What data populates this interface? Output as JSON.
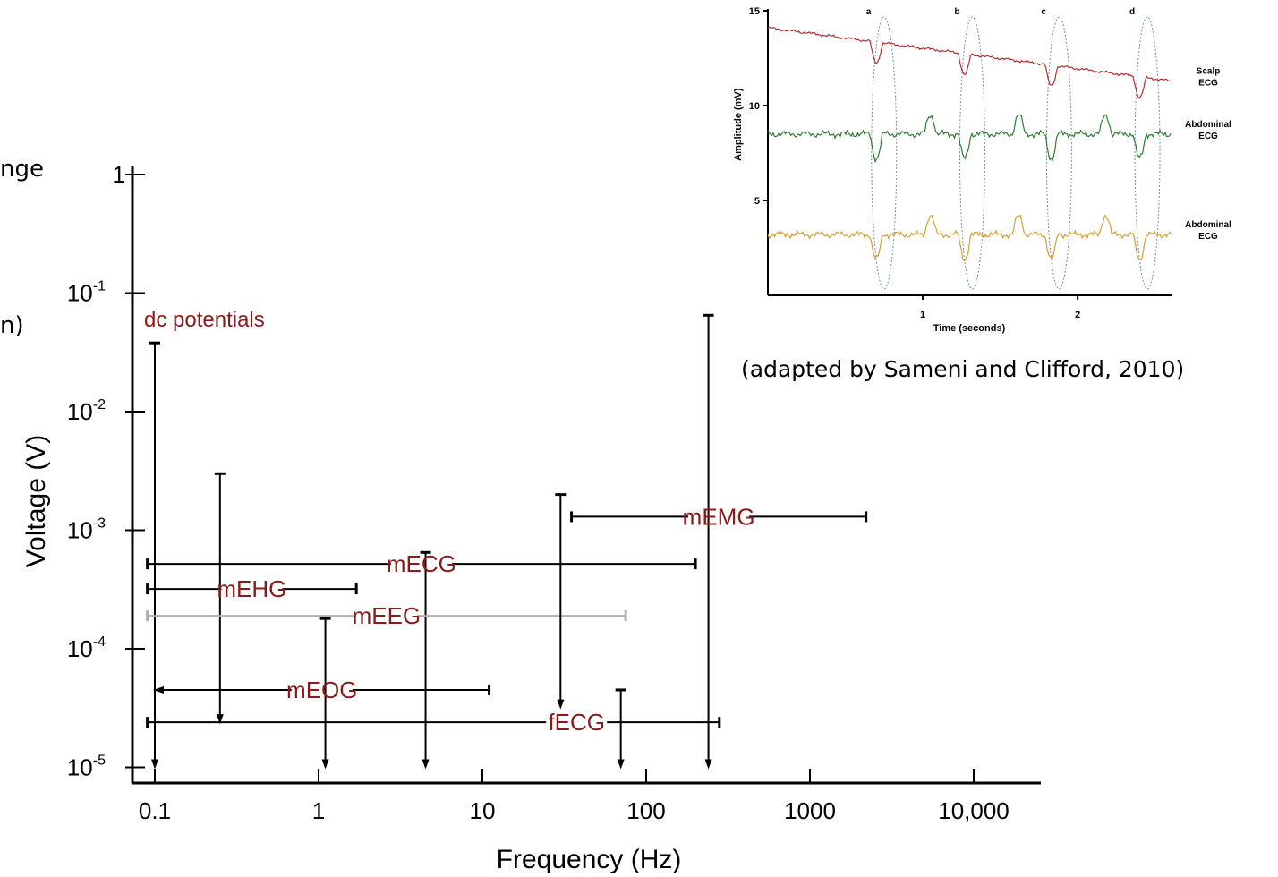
{
  "slide": {
    "text_fragment_1": "nge",
    "text_fragment_2": "n)",
    "caption": "(adapted by Sameni and Clifford, 2010)"
  },
  "colors": {
    "label": "#8b1a1a",
    "axis": "#000000",
    "scalp": "#b03030",
    "abdominal_1": "#2e7d32",
    "abdominal_2": "#d4a030",
    "ellipse": "#6a8fb8"
  },
  "chart_data": [
    {
      "type": "range-plot",
      "title": "",
      "xlabel": "Frequency (Hz)",
      "ylabel": "Voltage (V)",
      "x_scale": "log",
      "y_scale": "log",
      "xlim": [
        0.08,
        30000
      ],
      "ylim": [
        1e-05,
        1
      ],
      "x_ticks": [
        {
          "value": 0.1,
          "label": "0.1"
        },
        {
          "value": 1,
          "label": "1"
        },
        {
          "value": 10,
          "label": "10"
        },
        {
          "value": 100,
          "label": "100"
        },
        {
          "value": 1000,
          "label": "1000"
        },
        {
          "value": 10000,
          "label": "10,000"
        }
      ],
      "y_ticks": [
        {
          "value": 1,
          "base": "1",
          "exp": ""
        },
        {
          "value": 0.1,
          "base": "10",
          "exp": "-1"
        },
        {
          "value": 0.01,
          "base": "10",
          "exp": "-2"
        },
        {
          "value": 0.001,
          "base": "10",
          "exp": "-3"
        },
        {
          "value": 0.0001,
          "base": "10",
          "exp": "-4"
        },
        {
          "value": 1e-05,
          "base": "10",
          "exp": "-5"
        }
      ],
      "ranges": [
        {
          "name": "dc potentials",
          "freq": [
            0.1,
            0.1
          ],
          "voltage": [
            1e-05,
            0.038
          ],
          "label_freq": 0.1,
          "label_voltage": 0.052
        },
        {
          "name": "mEHG",
          "freq": [
            0.09,
            1.7
          ],
          "voltage": [
            2.4e-05,
            0.003
          ],
          "volt_at_freq": 0.25,
          "freq_at_voltage": 0.00032
        },
        {
          "name": "mEOG",
          "freq": [
            0.1,
            11
          ],
          "voltage": [
            1e-05,
            0.00018
          ],
          "volt_at_freq": 1.1,
          "freq_at_voltage": 4.5e-05
        },
        {
          "name": "mEEG",
          "freq": [
            0.09,
            75
          ],
          "voltage": [
            1e-05,
            0.00065
          ],
          "volt_at_freq": 4.5,
          "freq_at_voltage": 0.00019
        },
        {
          "name": "mECG",
          "freq": [
            0.09,
            200
          ],
          "voltage": [
            3.2e-05,
            0.002
          ],
          "volt_at_freq": 30,
          "freq_at_voltage": 0.00052
        },
        {
          "name": "mEMG",
          "freq": [
            35,
            2200
          ],
          "voltage": [
            1e-05,
            0.065
          ],
          "volt_at_freq": 240,
          "freq_at_voltage": 0.0013
        },
        {
          "name": "fECG",
          "freq": [
            0.09,
            280
          ],
          "voltage": [
            1e-05,
            4.5e-05
          ],
          "volt_at_freq": 70,
          "freq_at_voltage": 2.4e-05
        }
      ]
    },
    {
      "type": "line",
      "title": "",
      "xlabel": "Time (seconds)",
      "ylabel": "Amplitude (mV)",
      "xlim": [
        0,
        2.6
      ],
      "ylim": [
        0,
        15
      ],
      "x_ticks": [
        1,
        2
      ],
      "y_ticks": [
        5,
        10,
        15
      ],
      "beat_labels": [
        "a",
        "b",
        "c",
        "d"
      ],
      "beat_times": [
        0.75,
        1.32,
        1.88,
        2.45
      ],
      "series": [
        {
          "name": "Scalp ECG",
          "label_lines": [
            "Scalp",
            "ECG"
          ],
          "start": 14.1,
          "end": 11.3,
          "baseline_end": 11.3
        },
        {
          "name": "Abdominal ECG",
          "label_lines": [
            "Abdominal",
            "ECG"
          ],
          "start": 8.5,
          "end": 8.5
        },
        {
          "name": "Abdominal ECG",
          "label_lines": [
            "Abdominal",
            "ECG"
          ],
          "start": 3.2,
          "end": 3.2
        }
      ]
    }
  ]
}
